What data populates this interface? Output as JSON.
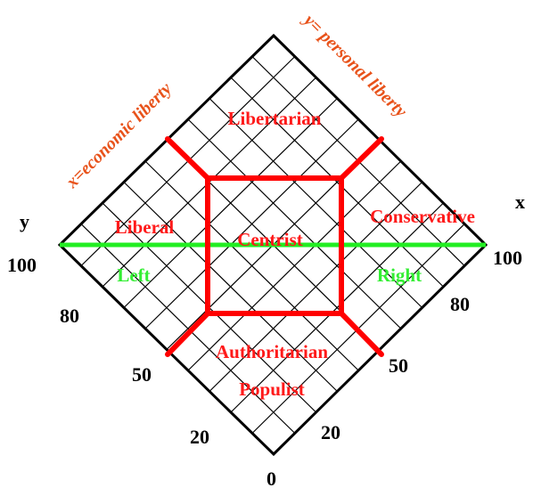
{
  "diagram": {
    "colors": {
      "grid": "#000000",
      "boundaries": "#ff0000",
      "midline": "#22ee22",
      "region_text": "#ff1a1a",
      "side_text": "#33ee33",
      "axis_titles": "#e8521a"
    },
    "axis_titles": {
      "x": "x=economic liberty",
      "y": "y= personal liberty"
    },
    "axis_letters": {
      "x": "x",
      "y": "y"
    },
    "y_ticks": [
      "100",
      "80",
      "50",
      "20"
    ],
    "x_ticks": [
      "100",
      "80",
      "50",
      "20"
    ],
    "origin": "0",
    "regions": {
      "top": "Libertarian",
      "left": "Liberal",
      "center": "Centrist",
      "right": "Conservative",
      "bottom_line1": "Authoritarian",
      "bottom_line2": "Populist"
    },
    "sides": {
      "left": "Left",
      "right": "Right"
    }
  }
}
